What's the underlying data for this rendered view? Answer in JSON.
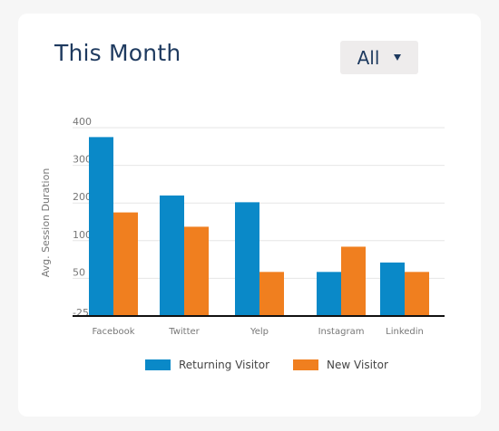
{
  "header": {
    "title": "This Month",
    "filter": {
      "selected": "All",
      "icon": "caret-down-icon"
    }
  },
  "colors": {
    "returning": "#0a89c8",
    "new": "#f07f1f",
    "title": "#1e3a5f"
  },
  "chart_data": {
    "type": "bar",
    "title": "This Month",
    "xlabel": "",
    "ylabel": "Avg. Session Duration",
    "categories": [
      "Facebook",
      "Twitter",
      "Yelp",
      "Instagram",
      "Linkedin"
    ],
    "y_ticks": [
      "-25",
      "50",
      "100",
      "200",
      "300",
      "400"
    ],
    "tick_units": [
      "-25",
      "0",
      "1",
      "2",
      "3",
      "4"
    ],
    "series": [
      {
        "name": "Returning Visitor",
        "color": "#0a89c8",
        "units": [
          3.75,
          2.2,
          2.02,
          0.17,
          0.42
        ]
      },
      {
        "name": "New Visitor",
        "color": "#f07f1f",
        "units": [
          1.75,
          1.37,
          0.17,
          0.84,
          0.17
        ]
      }
    ],
    "ylim": [
      "-25",
      "400"
    ],
    "grid": true,
    "legend": "bottom"
  }
}
